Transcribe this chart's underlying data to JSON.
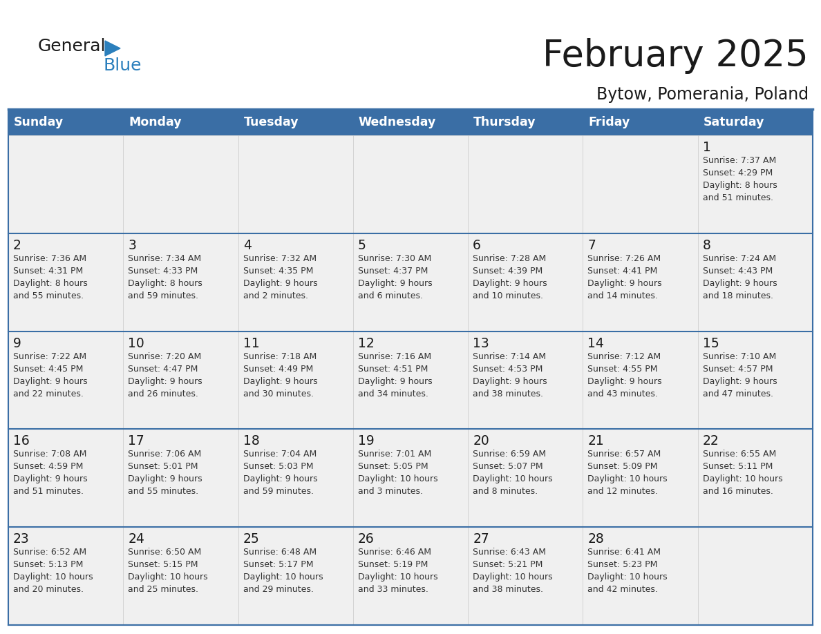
{
  "title": "February 2025",
  "subtitle": "Bytow, Pomerania, Poland",
  "days_of_week": [
    "Sunday",
    "Monday",
    "Tuesday",
    "Wednesday",
    "Thursday",
    "Friday",
    "Saturday"
  ],
  "header_bg": "#3A6EA5",
  "header_text": "#ffffff",
  "cell_bg": "#f0f0f0",
  "cell_bg_white": "#ffffff",
  "row_divider_color": "#3A6EA5",
  "col_divider_color": "#cccccc",
  "title_color": "#1a1a1a",
  "subtitle_color": "#1a1a1a",
  "day_number_color": "#1a1a1a",
  "cell_text_color": "#333333",
  "logo_general_color": "#1a1a1a",
  "logo_blue_color": "#2b7fbc",
  "weeks": [
    [
      {
        "day": null,
        "info": null
      },
      {
        "day": null,
        "info": null
      },
      {
        "day": null,
        "info": null
      },
      {
        "day": null,
        "info": null
      },
      {
        "day": null,
        "info": null
      },
      {
        "day": null,
        "info": null
      },
      {
        "day": 1,
        "info": "Sunrise: 7:37 AM\nSunset: 4:29 PM\nDaylight: 8 hours\nand 51 minutes."
      }
    ],
    [
      {
        "day": 2,
        "info": "Sunrise: 7:36 AM\nSunset: 4:31 PM\nDaylight: 8 hours\nand 55 minutes."
      },
      {
        "day": 3,
        "info": "Sunrise: 7:34 AM\nSunset: 4:33 PM\nDaylight: 8 hours\nand 59 minutes."
      },
      {
        "day": 4,
        "info": "Sunrise: 7:32 AM\nSunset: 4:35 PM\nDaylight: 9 hours\nand 2 minutes."
      },
      {
        "day": 5,
        "info": "Sunrise: 7:30 AM\nSunset: 4:37 PM\nDaylight: 9 hours\nand 6 minutes."
      },
      {
        "day": 6,
        "info": "Sunrise: 7:28 AM\nSunset: 4:39 PM\nDaylight: 9 hours\nand 10 minutes."
      },
      {
        "day": 7,
        "info": "Sunrise: 7:26 AM\nSunset: 4:41 PM\nDaylight: 9 hours\nand 14 minutes."
      },
      {
        "day": 8,
        "info": "Sunrise: 7:24 AM\nSunset: 4:43 PM\nDaylight: 9 hours\nand 18 minutes."
      }
    ],
    [
      {
        "day": 9,
        "info": "Sunrise: 7:22 AM\nSunset: 4:45 PM\nDaylight: 9 hours\nand 22 minutes."
      },
      {
        "day": 10,
        "info": "Sunrise: 7:20 AM\nSunset: 4:47 PM\nDaylight: 9 hours\nand 26 minutes."
      },
      {
        "day": 11,
        "info": "Sunrise: 7:18 AM\nSunset: 4:49 PM\nDaylight: 9 hours\nand 30 minutes."
      },
      {
        "day": 12,
        "info": "Sunrise: 7:16 AM\nSunset: 4:51 PM\nDaylight: 9 hours\nand 34 minutes."
      },
      {
        "day": 13,
        "info": "Sunrise: 7:14 AM\nSunset: 4:53 PM\nDaylight: 9 hours\nand 38 minutes."
      },
      {
        "day": 14,
        "info": "Sunrise: 7:12 AM\nSunset: 4:55 PM\nDaylight: 9 hours\nand 43 minutes."
      },
      {
        "day": 15,
        "info": "Sunrise: 7:10 AM\nSunset: 4:57 PM\nDaylight: 9 hours\nand 47 minutes."
      }
    ],
    [
      {
        "day": 16,
        "info": "Sunrise: 7:08 AM\nSunset: 4:59 PM\nDaylight: 9 hours\nand 51 minutes."
      },
      {
        "day": 17,
        "info": "Sunrise: 7:06 AM\nSunset: 5:01 PM\nDaylight: 9 hours\nand 55 minutes."
      },
      {
        "day": 18,
        "info": "Sunrise: 7:04 AM\nSunset: 5:03 PM\nDaylight: 9 hours\nand 59 minutes."
      },
      {
        "day": 19,
        "info": "Sunrise: 7:01 AM\nSunset: 5:05 PM\nDaylight: 10 hours\nand 3 minutes."
      },
      {
        "day": 20,
        "info": "Sunrise: 6:59 AM\nSunset: 5:07 PM\nDaylight: 10 hours\nand 8 minutes."
      },
      {
        "day": 21,
        "info": "Sunrise: 6:57 AM\nSunset: 5:09 PM\nDaylight: 10 hours\nand 12 minutes."
      },
      {
        "day": 22,
        "info": "Sunrise: 6:55 AM\nSunset: 5:11 PM\nDaylight: 10 hours\nand 16 minutes."
      }
    ],
    [
      {
        "day": 23,
        "info": "Sunrise: 6:52 AM\nSunset: 5:13 PM\nDaylight: 10 hours\nand 20 minutes."
      },
      {
        "day": 24,
        "info": "Sunrise: 6:50 AM\nSunset: 5:15 PM\nDaylight: 10 hours\nand 25 minutes."
      },
      {
        "day": 25,
        "info": "Sunrise: 6:48 AM\nSunset: 5:17 PM\nDaylight: 10 hours\nand 29 minutes."
      },
      {
        "day": 26,
        "info": "Sunrise: 6:46 AM\nSunset: 5:19 PM\nDaylight: 10 hours\nand 33 minutes."
      },
      {
        "day": 27,
        "info": "Sunrise: 6:43 AM\nSunset: 5:21 PM\nDaylight: 10 hours\nand 38 minutes."
      },
      {
        "day": 28,
        "info": "Sunrise: 6:41 AM\nSunset: 5:23 PM\nDaylight: 10 hours\nand 42 minutes."
      },
      {
        "day": null,
        "info": null
      }
    ]
  ]
}
